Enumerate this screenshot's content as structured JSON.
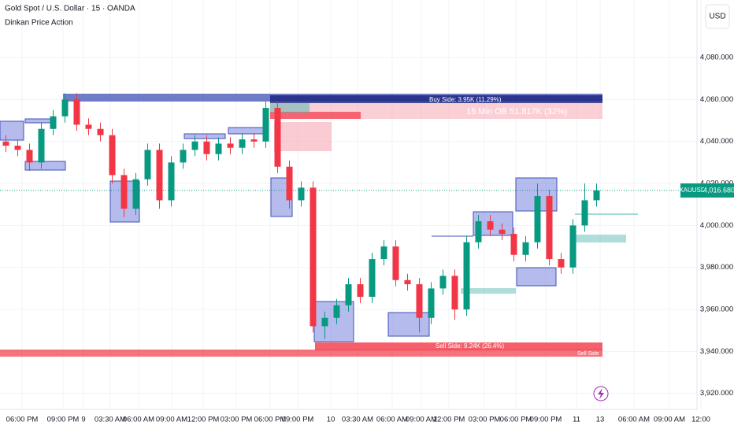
{
  "chart_data": {
    "type": "candlestick",
    "title": "Gold Spot / U.S. Dollar · 15 · OANDA",
    "subtitle": "Dinkan Price Action",
    "currency": "USD",
    "symbol": "XAUUSD",
    "last_price": {
      "value": 4016.68,
      "label": "4,016.680"
    },
    "annotations": [
      "Buy Side: 3.95K (11.29%)",
      "15 Min OB 51.817K (32%)",
      "Sell Side: 9.24K (26.4%)",
      "Sell Side"
    ],
    "up_color": "#089981",
    "down_color": "#f23645",
    "grid": true,
    "ylim": [
      3912.4,
      4107.4
    ],
    "yticks": [
      {
        "value": 4080,
        "label": "4,080.000"
      },
      {
        "value": 4060,
        "label": "4,060.000"
      },
      {
        "value": 4040,
        "label": "4,040.000"
      },
      {
        "value": 4020,
        "label": "4,020.000"
      },
      {
        "value": 4000,
        "label": "4,000.000"
      },
      {
        "value": 3980,
        "label": "3,980.000"
      },
      {
        "value": 3960,
        "label": "3,960.000"
      },
      {
        "value": 3940,
        "label": "3,940.000"
      },
      {
        "value": 3920,
        "label": "3,920.000"
      }
    ],
    "x_labels": [
      "06:00 PM",
      "09:00 PM",
      "9",
      "03:30 AM",
      "06:00 AM",
      "09:00 AM",
      "12:00 PM",
      "03:00 PM",
      "06:00 PM",
      "09:00 PM",
      "10",
      "03:30 AM",
      "06:00 AM",
      "09:00 AM",
      "12:00 PM",
      "03:00 PM",
      "06:00 PM",
      "09:00 PM",
      "11",
      "13",
      "06:00 AM",
      "09:00 AM",
      "12:00"
    ],
    "candles": [
      [
        4040,
        4043,
        4035,
        4038
      ],
      [
        4038,
        4041,
        4033,
        4036
      ],
      [
        4036,
        4039,
        4026,
        4030
      ],
      [
        4030,
        4049,
        4027,
        4046
      ],
      [
        4046,
        4055,
        4043,
        4052
      ],
      [
        4052,
        4063,
        4049,
        4060
      ],
      [
        4060,
        4063,
        4045,
        4048
      ],
      [
        4048,
        4051,
        4043,
        4046
      ],
      [
        4046,
        4049,
        4040,
        4043
      ],
      [
        4043,
        4046,
        4020,
        4024
      ],
      [
        4024,
        4027,
        4004,
        4008
      ],
      [
        4008,
        4025,
        4005,
        4022
      ],
      [
        4022,
        4039,
        4019,
        4036
      ],
      [
        4036,
        4039,
        4008,
        4012
      ],
      [
        4012,
        4033,
        4009,
        4030
      ],
      [
        4030,
        4039,
        4027,
        4036
      ],
      [
        4036,
        4043,
        4033,
        4040
      ],
      [
        4040,
        4043,
        4031,
        4034
      ],
      [
        4034,
        4042,
        4031,
        4039
      ],
      [
        4039,
        4042,
        4034,
        4037
      ],
      [
        4037,
        4044,
        4034,
        4041
      ],
      [
        4041,
        4044,
        4037,
        4040
      ],
      [
        4040,
        4059,
        4037,
        4056
      ],
      [
        4056,
        4059,
        4025,
        4028
      ],
      [
        4028,
        4031,
        4008,
        4012
      ],
      [
        4012,
        4021,
        4009,
        4018
      ],
      [
        4018,
        4021,
        3949,
        3952
      ],
      [
        3952,
        3959,
        3946,
        3956
      ],
      [
        3956,
        3965,
        3953,
        3962
      ],
      [
        3962,
        3975,
        3959,
        3972
      ],
      [
        3972,
        3975,
        3963,
        3966
      ],
      [
        3966,
        3987,
        3963,
        3984
      ],
      [
        3984,
        3993,
        3981,
        3990
      ],
      [
        3990,
        3993,
        3971,
        3974
      ],
      [
        3974,
        3977,
        3969,
        3972
      ],
      [
        3972,
        3975,
        3949,
        3956
      ],
      [
        3956,
        3973,
        3953,
        3970
      ],
      [
        3970,
        3979,
        3967,
        3976
      ],
      [
        3976,
        3979,
        3955,
        3960
      ],
      [
        3960,
        3995,
        3957,
        3992
      ],
      [
        3992,
        4005,
        3989,
        4002
      ],
      [
        4002,
        4005,
        3995,
        3998
      ],
      [
        3998,
        4001,
        3993,
        3996
      ],
      [
        3996,
        3999,
        3983,
        3986
      ],
      [
        3986,
        3995,
        3983,
        3992
      ],
      [
        3992,
        4020,
        3989,
        4014
      ],
      [
        4014,
        4017,
        3981,
        3984
      ],
      [
        3984,
        3987,
        3977,
        3980
      ],
      [
        3980,
        4003,
        3977,
        4000
      ],
      [
        4000,
        4020,
        3997,
        4012
      ],
      [
        4012,
        4020,
        4009,
        4016.68
      ]
    ]
  }
}
